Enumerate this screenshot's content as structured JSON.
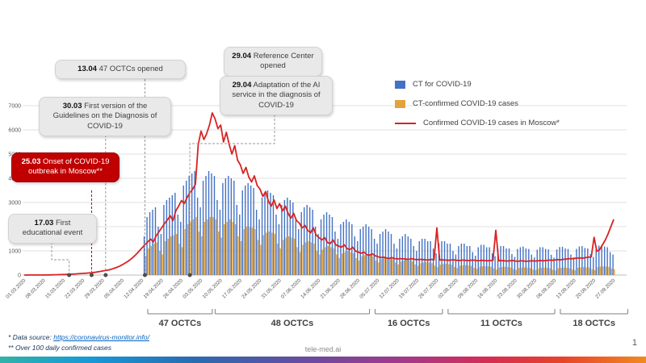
{
  "annotations": [
    {
      "date": "13.04",
      "text": "47 OCTCs opened",
      "anchor_day": 43
    },
    {
      "date": "29.04",
      "text": "Reference Center opened",
      "anchor_day": 59
    },
    {
      "date": "29.04",
      "text": "Adaptation of the AI service in the diagnosis of COVID-19",
      "anchor_day": 59
    },
    {
      "date": "30.03",
      "text": "First version of the Guidelines on the Diagnosis of COVID-19",
      "anchor_day": 29
    },
    {
      "date": "25.03",
      "text": "Onset of COVID-19 outbreak in Moscow**",
      "anchor_day": 24
    },
    {
      "date": "17.03",
      "text": "First educational event",
      "anchor_day": 16
    }
  ],
  "brackets": [
    {
      "label": "47 OCTCs",
      "start_day": 44,
      "end_day": 67
    },
    {
      "label": "48 OCTCs",
      "start_day": 68,
      "end_day": 123
    },
    {
      "label": "16 OCTCs",
      "start_day": 125,
      "end_day": 149
    },
    {
      "label": "11 OCTCs",
      "start_day": 151,
      "end_day": 189
    },
    {
      "label": "18 OCTCs",
      "start_day": 191,
      "end_day": 215
    }
  ],
  "footer": {
    "source_prefix": "* Data source: ",
    "source_link": "https://coronavirus-monitor.info/",
    "note": "** Over 100 daily confirmed cases",
    "watermark": "tele-med.ai",
    "page": "1"
  },
  "chart_data": {
    "type": "bar",
    "title": "",
    "xlabel": "",
    "ylabel": "",
    "ylim": [
      0,
      7000
    ],
    "yticks": [
      0,
      1000,
      2000,
      3000,
      4000,
      5000,
      6000,
      7000
    ],
    "grid": "horizontal",
    "legend_position": "top-right",
    "days": 211,
    "x_start": "01.03.2020",
    "x_labels": [
      "01.03.2020",
      "08.03.2020",
      "15.03.2020",
      "22.03.2020",
      "29.03.2020",
      "05.04.2020",
      "12.04.2020",
      "19.04.2020",
      "26.04.2020",
      "03.05.2020",
      "10.05.2020",
      "17.05.2020",
      "24.05.2020",
      "31.05.2020",
      "07.06.2020",
      "14.06.2020",
      "21.06.2020",
      "28.06.2020",
      "05.07.2020",
      "12.07.2020",
      "19.07.2020",
      "26.07.2020",
      "02.08.2020",
      "09.08.2020",
      "16.08.2020",
      "23.08.2020",
      "30.08.2020",
      "06.09.2020",
      "13.09.2020",
      "20.09.2020",
      "27.09.2020"
    ],
    "series": [
      {
        "name": "CT for COVID-19",
        "type": "bar",
        "color": "#4472C4",
        "values": [
          0,
          0,
          0,
          0,
          0,
          0,
          0,
          0,
          0,
          0,
          0,
          0,
          0,
          0,
          0,
          0,
          0,
          0,
          0,
          0,
          0,
          0,
          0,
          0,
          0,
          0,
          0,
          0,
          0,
          0,
          0,
          0,
          0,
          0,
          0,
          0,
          0,
          0,
          0,
          0,
          0,
          0,
          0,
          1600,
          2400,
          2600,
          2700,
          2800,
          2000,
          1700,
          2900,
          3100,
          3200,
          3300,
          3400,
          2500,
          2200,
          3700,
          3900,
          4100,
          4200,
          4300,
          3200,
          2800,
          3900,
          4100,
          4300,
          4200,
          4100,
          3100,
          2700,
          3800,
          4000,
          4100,
          4000,
          3900,
          2900,
          2500,
          3500,
          3700,
          3800,
          3700,
          3600,
          2700,
          2300,
          3200,
          3400,
          3500,
          3400,
          3300,
          2500,
          2100,
          2900,
          3100,
          3200,
          3100,
          3000,
          2300,
          1900,
          2600,
          2800,
          2900,
          2800,
          2700,
          2000,
          1700,
          2300,
          2500,
          2600,
          2500,
          2400,
          1800,
          1500,
          2100,
          2200,
          2300,
          2200,
          2100,
          1600,
          1400,
          1900,
          2000,
          2100,
          2000,
          1900,
          1500,
          1300,
          1700,
          1800,
          1900,
          1800,
          1700,
          1300,
          1100,
          1500,
          1600,
          1700,
          1600,
          1500,
          1200,
          1000,
          1400,
          1500,
          1500,
          1400,
          1400,
          1100,
          900,
          1300,
          1400,
          1400,
          1300,
          1300,
          1000,
          850,
          1200,
          1300,
          1300,
          1200,
          1200,
          950,
          800,
          1150,
          1250,
          1250,
          1150,
          1150,
          900,
          780,
          1100,
          1200,
          1200,
          1100,
          1100,
          870,
          750,
          1080,
          1150,
          1180,
          1100,
          1080,
          850,
          730,
          1050,
          1150,
          1150,
          1080,
          1060,
          840,
          720,
          1060,
          1160,
          1170,
          1100,
          1080,
          850,
          730,
          1080,
          1180,
          1200,
          1120,
          1100,
          870,
          750,
          1120,
          1220,
          1250,
          1180,
          1150,
          950,
          850
        ]
      },
      {
        "name": "CT-confirmed COVID-19 cases",
        "type": "bar",
        "color": "#E3A33C",
        "values": [
          0,
          0,
          0,
          0,
          0,
          0,
          0,
          0,
          0,
          0,
          0,
          0,
          0,
          0,
          0,
          0,
          0,
          0,
          0,
          0,
          0,
          0,
          0,
          0,
          0,
          0,
          0,
          0,
          0,
          0,
          0,
          0,
          0,
          0,
          0,
          0,
          0,
          0,
          0,
          0,
          0,
          0,
          0,
          800,
          1100,
          1200,
          1300,
          1350,
          1000,
          850,
          1400,
          1500,
          1600,
          1650,
          1700,
          1300,
          1150,
          1900,
          2100,
          2200,
          2300,
          2400,
          1800,
          1600,
          2200,
          2300,
          2400,
          2400,
          2300,
          1800,
          1550,
          2100,
          2200,
          2300,
          2200,
          2100,
          1600,
          1400,
          1900,
          2000,
          2000,
          1950,
          1900,
          1450,
          1250,
          1650,
          1750,
          1800,
          1750,
          1700,
          1300,
          1100,
          1450,
          1550,
          1600,
          1550,
          1500,
          1150,
          950,
          1250,
          1350,
          1400,
          1350,
          1300,
          1000,
          850,
          1050,
          1150,
          1200,
          1150,
          1100,
          850,
          700,
          900,
          950,
          1000,
          950,
          900,
          700,
          600,
          780,
          820,
          860,
          820,
          780,
          600,
          520,
          660,
          700,
          740,
          700,
          660,
          520,
          440,
          560,
          600,
          630,
          600,
          560,
          440,
          380,
          490,
          520,
          540,
          520,
          490,
          390,
          330,
          430,
          460,
          470,
          450,
          430,
          340,
          290,
          380,
          400,
          410,
          400,
          380,
          300,
          260,
          340,
          360,
          370,
          360,
          340,
          270,
          230,
          310,
          330,
          340,
          330,
          310,
          250,
          210,
          290,
          310,
          320,
          310,
          290,
          230,
          200,
          280,
          300,
          310,
          300,
          280,
          220,
          190,
          280,
          300,
          310,
          300,
          290,
          230,
          200,
          300,
          320,
          330,
          320,
          310,
          240,
          210,
          330,
          350,
          360,
          350,
          340,
          270,
          240
        ]
      },
      {
        "name": "Confirmed COVID-19 cases in Moscow*",
        "type": "line",
        "color": "#D92222",
        "values": [
          1,
          1,
          2,
          2,
          3,
          3,
          4,
          5,
          6,
          8,
          10,
          13,
          16,
          20,
          24,
          28,
          33,
          39,
          46,
          54,
          63,
          71,
          78,
          86,
          95,
          110,
          130,
          150,
          170,
          190,
          210,
          240,
          280,
          320,
          370,
          430,
          500,
          570,
          660,
          760,
          870,
          1000,
          1130,
          1250,
          1370,
          1490,
          1370,
          1620,
          1790,
          1960,
          2130,
          2280,
          2450,
          2250,
          2650,
          2850,
          3080,
          2950,
          3200,
          3400,
          3550,
          3750,
          5400,
          5950,
          5600,
          5850,
          6200,
          6700,
          6450,
          6050,
          6200,
          5500,
          5900,
          5400,
          5000,
          5350,
          4750,
          4550,
          4200,
          4450,
          4050,
          3850,
          4100,
          3700,
          3550,
          3250,
          3450,
          3050,
          2850,
          3100,
          2750,
          2950,
          2650,
          2850,
          2550,
          2350,
          2550,
          2250,
          2150,
          1950,
          2050,
          1850,
          1750,
          1950,
          1650,
          1550,
          1450,
          1550,
          1350,
          1300,
          1450,
          1250,
          1200,
          1150,
          1250,
          1100,
          1050,
          1150,
          1000,
          950,
          900,
          950,
          850,
          820,
          880,
          800,
          760,
          730,
          740,
          710,
          690,
          720,
          680,
          670,
          680,
          670,
          660,
          650,
          680,
          650,
          640,
          650,
          640,
          630,
          620,
          650,
          630,
          1950,
          620,
          630,
          620,
          610,
          620,
          630,
          610,
          600,
          620,
          610,
          600,
          610,
          620,
          600,
          590,
          610,
          600,
          590,
          600,
          610,
          1850,
          590,
          600,
          590,
          580,
          590,
          600,
          580,
          570,
          590,
          580,
          570,
          580,
          590,
          580,
          590,
          600,
          590,
          600,
          620,
          610,
          620,
          640,
          630,
          650,
          660,
          680,
          670,
          690,
          700,
          710,
          700,
          720,
          740,
          750,
          1560,
          980,
          1050,
          1250,
          1450,
          1700,
          2000,
          2300
        ]
      }
    ]
  }
}
